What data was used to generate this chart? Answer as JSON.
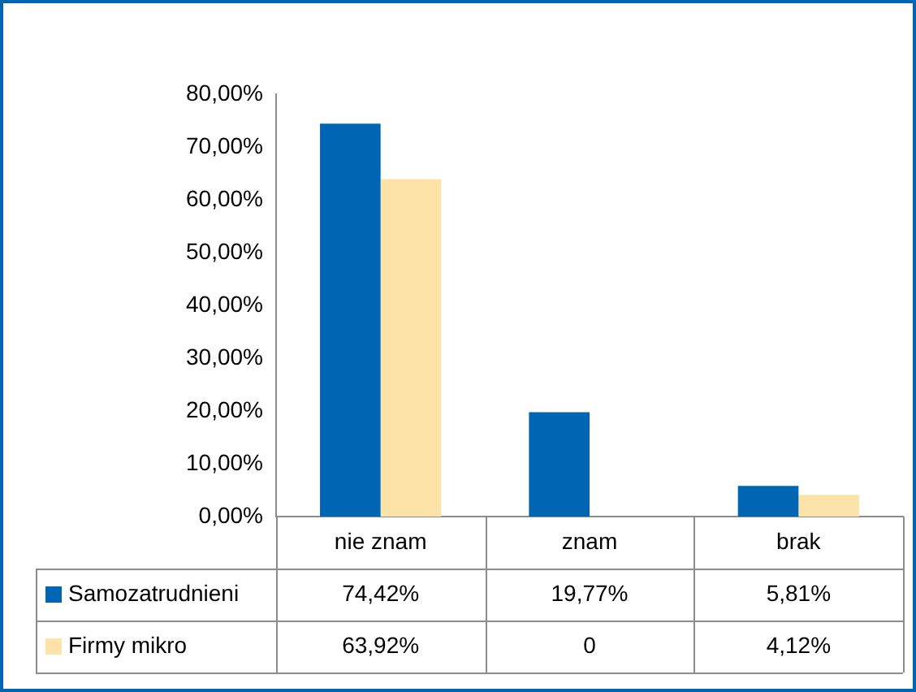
{
  "chart_data": {
    "type": "bar",
    "categories": [
      "nie znam",
      "znam",
      "brak"
    ],
    "series": [
      {
        "name": "Samozatrudnieni",
        "color": "#0066b3",
        "values": [
          74.42,
          19.77,
          5.81
        ],
        "value_labels": [
          "74,42%",
          "19,77%",
          "5,81%"
        ]
      },
      {
        "name": "Firmy mikro",
        "color": "#fde3a7",
        "values": [
          63.92,
          0,
          4.12
        ],
        "value_labels": [
          "63,92%",
          "0",
          "4,12%"
        ]
      }
    ],
    "ylim": [
      0,
      80
    ],
    "yticks": [
      {
        "value": 0,
        "label": "0,00%"
      },
      {
        "value": 10,
        "label": "10,00%"
      },
      {
        "value": 20,
        "label": "20,00%"
      },
      {
        "value": 30,
        "label": "30,00%"
      },
      {
        "value": 40,
        "label": "40,00%"
      },
      {
        "value": 50,
        "label": "50,00%"
      },
      {
        "value": 60,
        "label": "60,00%"
      },
      {
        "value": 70,
        "label": "70,00%"
      },
      {
        "value": 80,
        "label": "80,00%"
      }
    ],
    "grid": false,
    "legend": "bottom left"
  }
}
